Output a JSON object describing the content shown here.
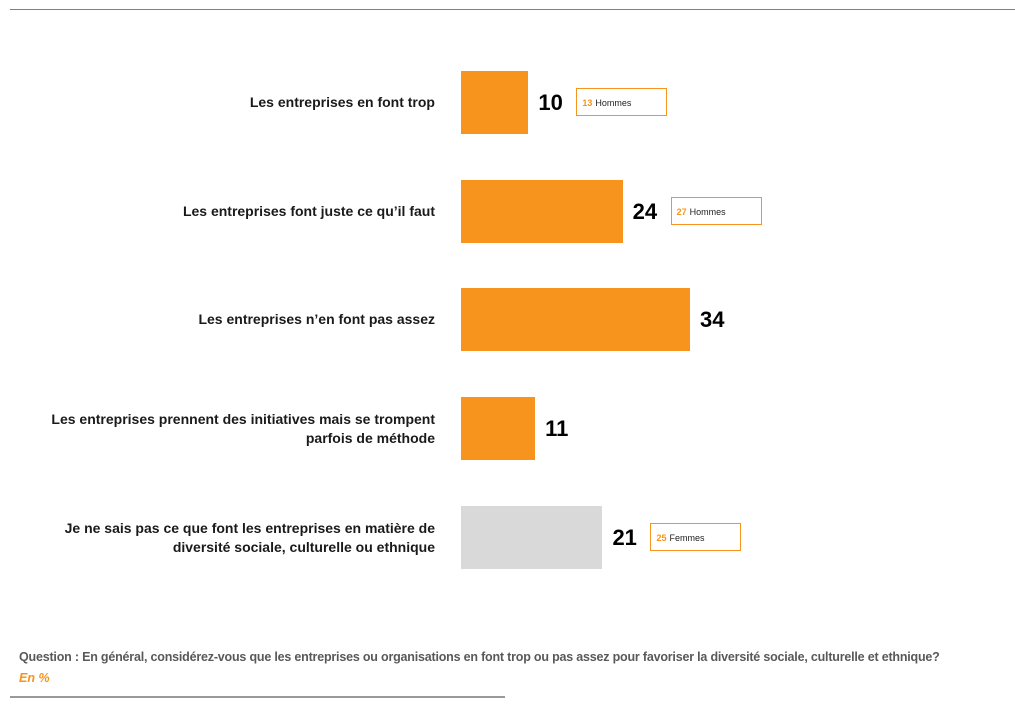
{
  "chart_data": {
    "type": "bar",
    "orientation": "horizontal",
    "categories": [
      "Les entreprises en font trop",
      "Les entreprises font juste ce qu’il faut",
      "Les entreprises n’en font pas assez",
      "Les entreprises prennent des initiatives mais se trompent parfois de méthode",
      "Je ne sais pas ce que font les entreprises en matière de diversité sociale, culturelle ou ethnique"
    ],
    "values": [
      10,
      24,
      34,
      11,
      21
    ],
    "bar_colors": [
      "#f7941d",
      "#f7941d",
      "#f7941d",
      "#f7941d",
      "#d9d9d9"
    ],
    "callouts": [
      {
        "index": 0,
        "value": "13",
        "label": "Hommes"
      },
      {
        "index": 1,
        "value": "27",
        "label": "Hommes"
      },
      {
        "index": 4,
        "value": "25",
        "label": "Femmes"
      }
    ],
    "xlim": [
      0,
      34
    ],
    "unit": "En  %"
  },
  "footer": {
    "question": "Question : En général, considérez-vous que les entreprises ou organisations en font trop ou pas assez pour favoriser la diversité sociale, culturelle et ethnique?",
    "unit": "En  %"
  }
}
